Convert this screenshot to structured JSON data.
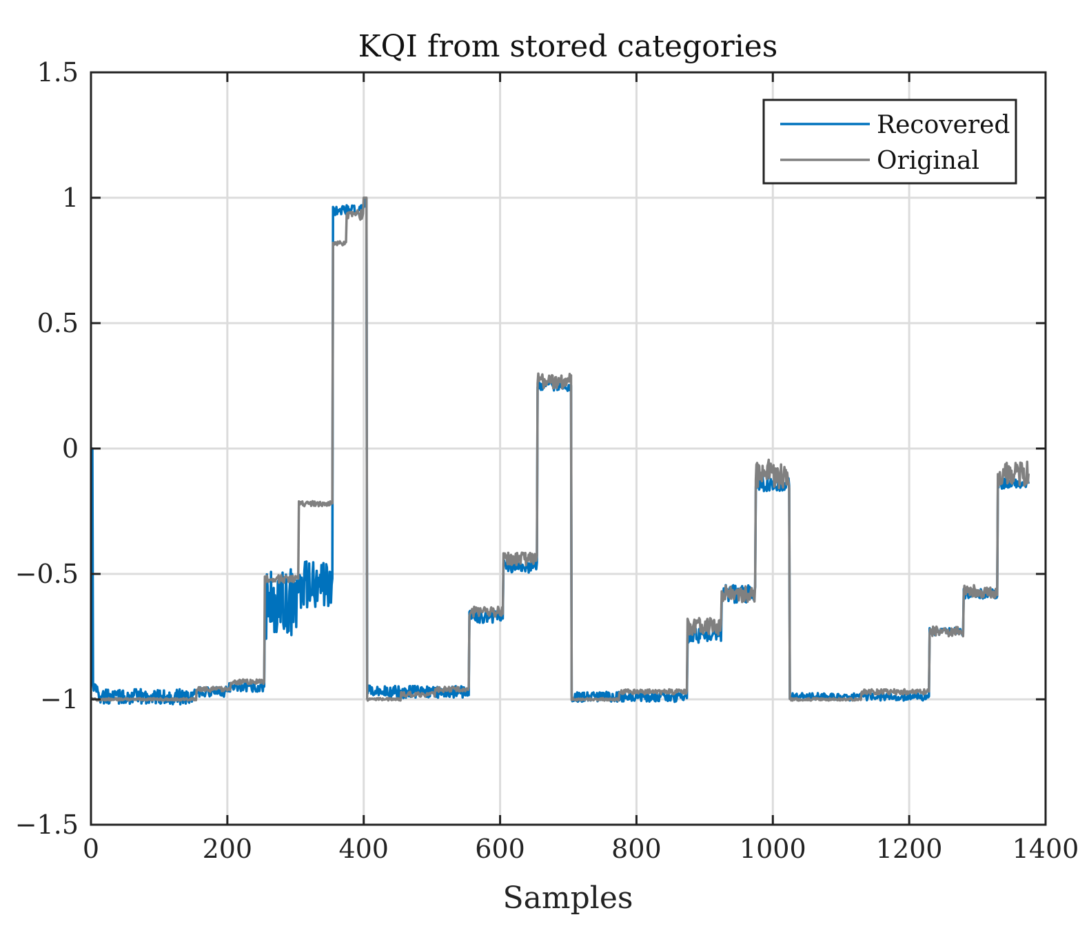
{
  "chart_data": {
    "type": "line",
    "title": "KQI from stored categories",
    "xlabel": "Samples",
    "ylabel": "",
    "xlim": [
      0,
      1400
    ],
    "ylim": [
      -1.5,
      1.5
    ],
    "xticks": [
      0,
      200,
      400,
      600,
      800,
      1000,
      1200,
      1400
    ],
    "xtick_labels": [
      "0",
      "200",
      "400",
      "600",
      "800",
      "1000",
      "1200",
      "1400"
    ],
    "yticks": [
      1.5,
      1,
      0.5,
      0,
      -0.5,
      -1,
      -1.5
    ],
    "ytick_labels": [
      "1.5",
      "1",
      "0.5",
      "0",
      "−0.5",
      "−1",
      "−1.5"
    ],
    "grid": true,
    "legend_position": "top-right",
    "series": [
      {
        "name": "Recovered",
        "color": "#0072bd",
        "segments": [
          {
            "from": 0,
            "to": 3,
            "level": 0.0,
            "noise": 0.0
          },
          {
            "from": 3,
            "to": 10,
            "level": -0.95,
            "noise": 0.02
          },
          {
            "from": 10,
            "to": 150,
            "level": -0.99,
            "noise": 0.03
          },
          {
            "from": 150,
            "to": 200,
            "level": -0.97,
            "noise": 0.02
          },
          {
            "from": 200,
            "to": 255,
            "level": -0.95,
            "noise": 0.02
          },
          {
            "from": 255,
            "to": 305,
            "level": -0.62,
            "noise": 0.14
          },
          {
            "from": 305,
            "to": 355,
            "level": -0.55,
            "noise": 0.1
          },
          {
            "from": 355,
            "to": 400,
            "level": 0.95,
            "noise": 0.02
          },
          {
            "from": 400,
            "to": 405,
            "level": 0.98,
            "noise": 0.02
          },
          {
            "from": 405,
            "to": 555,
            "level": -0.97,
            "noise": 0.025
          },
          {
            "from": 555,
            "to": 605,
            "level": -0.67,
            "noise": 0.025
          },
          {
            "from": 605,
            "to": 655,
            "level": -0.47,
            "noise": 0.025
          },
          {
            "from": 655,
            "to": 705,
            "level": 0.25,
            "noise": 0.02
          },
          {
            "from": 705,
            "to": 875,
            "level": -0.99,
            "noise": 0.02
          },
          {
            "from": 875,
            "to": 925,
            "level": -0.74,
            "noise": 0.035
          },
          {
            "from": 925,
            "to": 975,
            "level": -0.58,
            "noise": 0.035
          },
          {
            "from": 975,
            "to": 1025,
            "level": -0.14,
            "noise": 0.03
          },
          {
            "from": 1025,
            "to": 1230,
            "level": -0.99,
            "noise": 0.015
          },
          {
            "from": 1230,
            "to": 1280,
            "level": -0.73,
            "noise": 0.015
          },
          {
            "from": 1280,
            "to": 1330,
            "level": -0.58,
            "noise": 0.02
          },
          {
            "from": 1330,
            "to": 1375,
            "level": -0.14,
            "noise": 0.02
          }
        ]
      },
      {
        "name": "Original",
        "color": "#808080",
        "segments": [
          {
            "from": 0,
            "to": 155,
            "level": -1.0,
            "noise": 0.005
          },
          {
            "from": 155,
            "to": 205,
            "level": -0.96,
            "noise": 0.01
          },
          {
            "from": 205,
            "to": 255,
            "level": -0.93,
            "noise": 0.01
          },
          {
            "from": 255,
            "to": 305,
            "level": -0.52,
            "noise": 0.015
          },
          {
            "from": 305,
            "to": 355,
            "level": -0.22,
            "noise": 0.01
          },
          {
            "from": 355,
            "to": 375,
            "level": 0.82,
            "noise": 0.01
          },
          {
            "from": 375,
            "to": 400,
            "level": 0.93,
            "noise": 0.02
          },
          {
            "from": 400,
            "to": 405,
            "level": 1.0,
            "noise": 0.0
          },
          {
            "from": 405,
            "to": 455,
            "level": -1.0,
            "noise": 0.005
          },
          {
            "from": 455,
            "to": 505,
            "level": -0.98,
            "noise": 0.01
          },
          {
            "from": 505,
            "to": 555,
            "level": -0.96,
            "noise": 0.01
          },
          {
            "from": 555,
            "to": 605,
            "level": -0.65,
            "noise": 0.02
          },
          {
            "from": 605,
            "to": 655,
            "level": -0.44,
            "noise": 0.025
          },
          {
            "from": 655,
            "to": 705,
            "level": 0.27,
            "noise": 0.03
          },
          {
            "from": 705,
            "to": 775,
            "level": -1.0,
            "noise": 0.005
          },
          {
            "from": 775,
            "to": 875,
            "level": -0.97,
            "noise": 0.01
          },
          {
            "from": 875,
            "to": 925,
            "level": -0.71,
            "noise": 0.035
          },
          {
            "from": 925,
            "to": 975,
            "level": -0.58,
            "noise": 0.035
          },
          {
            "from": 975,
            "to": 1025,
            "level": -0.1,
            "noise": 0.06
          },
          {
            "from": 1025,
            "to": 1130,
            "level": -1.0,
            "noise": 0.005
          },
          {
            "from": 1130,
            "to": 1230,
            "level": -0.97,
            "noise": 0.01
          },
          {
            "from": 1230,
            "to": 1280,
            "level": -0.73,
            "noise": 0.02
          },
          {
            "from": 1280,
            "to": 1330,
            "level": -0.57,
            "noise": 0.025
          },
          {
            "from": 1330,
            "to": 1375,
            "level": -0.1,
            "noise": 0.05
          }
        ]
      }
    ]
  }
}
